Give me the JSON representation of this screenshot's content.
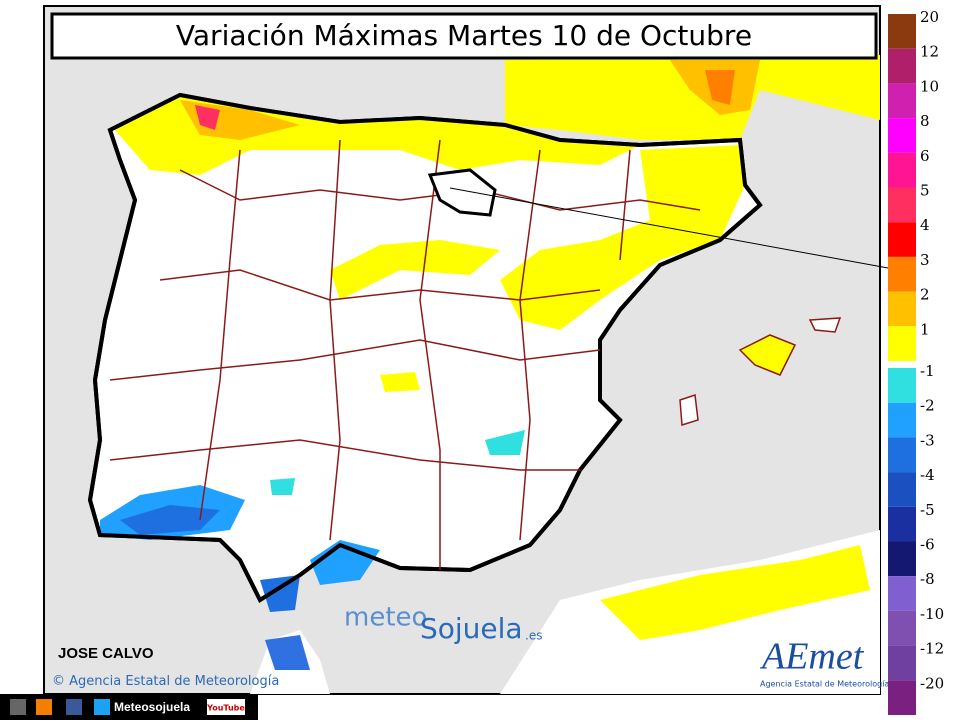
{
  "header": {
    "title": "Variación Máximas Martes 10 de Octubre"
  },
  "legend": {
    "positive": [
      {
        "label": "20",
        "color": "#8b3a0f"
      },
      {
        "label": "12",
        "color": "#b0206a"
      },
      {
        "label": "10",
        "color": "#d020b0"
      },
      {
        "label": "8",
        "color": "#ff00ff"
      },
      {
        "label": "6",
        "color": "#ff1493"
      },
      {
        "label": "5",
        "color": "#ff3060"
      },
      {
        "label": "4",
        "color": "#ff0000"
      },
      {
        "label": "3",
        "color": "#ff7f00"
      },
      {
        "label": "2",
        "color": "#ffc000"
      },
      {
        "label": "1",
        "color": "#ffff00"
      }
    ],
    "negative": [
      {
        "label": "-1",
        "color": "#30e0e0"
      },
      {
        "label": "-2",
        "color": "#20a0ff"
      },
      {
        "label": "-3",
        "color": "#1e70e0"
      },
      {
        "label": "-4",
        "color": "#1a50c0"
      },
      {
        "label": "-5",
        "color": "#1a30a0"
      },
      {
        "label": "-6",
        "color": "#141870"
      },
      {
        "label": "-8",
        "color": "#8060d0"
      },
      {
        "label": "-10",
        "color": "#8050b0"
      },
      {
        "label": "-12",
        "color": "#7040a0"
      },
      {
        "label": "-20",
        "color": "#7a2080"
      }
    ]
  },
  "author": "JOSE CALVO",
  "copyright": "Agencia Estatal de Meteorología",
  "watermark": {
    "part1": "meteo",
    "part2": "Sojuela",
    "part3": ".es"
  },
  "logo": {
    "name": "AEmet",
    "subtitle": "Agencia Estatal de Meteorología"
  },
  "footer": {
    "site": "Meteosojuela",
    "youtube": "YouTube"
  }
}
